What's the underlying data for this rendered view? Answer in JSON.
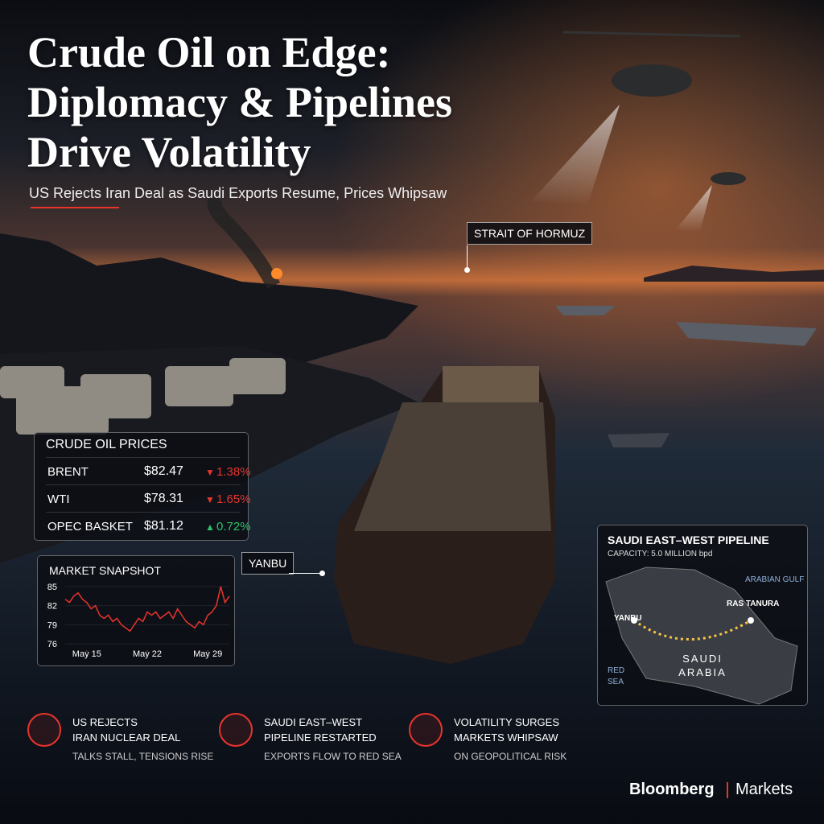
{
  "header": {
    "title_lines": [
      "Crude Oil on Edge:",
      "Diplomacy & Pipelines",
      "Drive Volatility"
    ],
    "subtitle": "US Rejects Iran Deal as Saudi Exports Resume, Prices Whipsaw"
  },
  "callouts": {
    "strait": "STRAIT OF HORMUZ",
    "yanbu": "YANBU"
  },
  "prices": {
    "title": "CRUDE OIL PRICES",
    "rows": [
      {
        "name": "BRENT",
        "price": "$82.47",
        "change": "1.38%",
        "direction": "down"
      },
      {
        "name": "WTI",
        "price": "$78.31",
        "change": "1.65%",
        "direction": "down"
      },
      {
        "name": "OPEC BASKET",
        "price": "$81.12",
        "change": "0.72%",
        "direction": "up"
      }
    ]
  },
  "snapshot": {
    "type": "line",
    "title": "MARKET SNAPSHOT",
    "color": "#e8342c",
    "x": [
      12.5,
      13,
      13.5,
      14,
      14.5,
      15,
      15.5,
      16,
      16.5,
      17,
      17.5,
      18,
      18.5,
      19,
      19.5,
      20,
      20.5,
      21,
      21.5,
      22,
      22.5,
      23,
      23.5,
      24,
      24.5,
      25,
      25.5,
      26,
      26.5,
      27,
      27.5,
      28,
      28.5,
      29,
      29.5,
      30,
      30.5,
      31,
      31.5
    ],
    "values": [
      83,
      82.5,
      83.5,
      84,
      83,
      82.5,
      81.5,
      82,
      80.5,
      80,
      80.5,
      79.5,
      80,
      79,
      78.5,
      78,
      79,
      80,
      79.5,
      81,
      80.5,
      81,
      80,
      80.5,
      81,
      80,
      81.5,
      80.5,
      79.5,
      79,
      78.5,
      79.5,
      79,
      80.5,
      81,
      82,
      85,
      82.5,
      83.5
    ],
    "xlim": [
      12.5,
      31.5
    ],
    "xticks": [
      {
        "value": 15,
        "label": "May 15"
      },
      {
        "value": 22,
        "label": "May 22"
      },
      {
        "value": 29,
        "label": "May 29"
      }
    ],
    "ylim": [
      75,
      86
    ],
    "yticks": [
      76,
      79,
      82,
      85
    ]
  },
  "pipeline": {
    "title": "SAUDI EAST–WEST PIPELINE",
    "capacity": "CAPACITY: 5.0 MILLION bpd",
    "gulf": "ARABIAN GULF",
    "east_terminal": "RAS TANURA",
    "west_terminal": "YANBU",
    "country_lines": [
      "SAUDI",
      "ARABIA"
    ],
    "sea_lines": [
      "RED",
      "SEA"
    ]
  },
  "items": [
    {
      "title_lines": [
        "US REJECTS",
        "IRAN NUCLEAR DEAL"
      ],
      "detail": "TALKS STALL, TENSIONS RISE"
    },
    {
      "title_lines": [
        "SAUDI EAST–WEST",
        "PIPELINE RESTARTED"
      ],
      "detail": "EXPORTS FLOW TO RED SEA"
    },
    {
      "title_lines": [
        "VOLATILITY SURGES",
        "MARKETS WHIPSAW"
      ],
      "detail": "ON GEOPOLITICAL RISK"
    }
  ],
  "footer": {
    "brand": "Bloomberg",
    "section": "Markets"
  }
}
